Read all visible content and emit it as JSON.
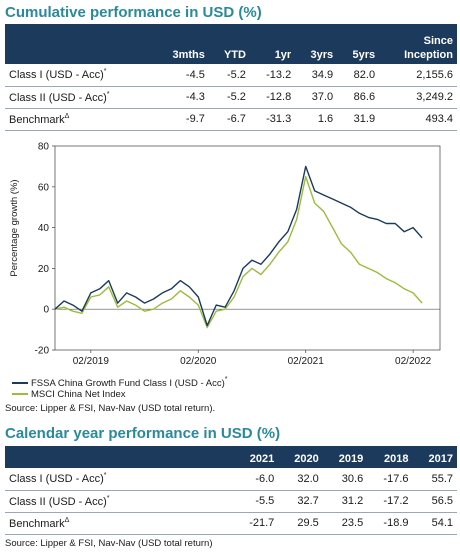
{
  "perf_title": "Cumulative performance in USD (%)",
  "perf_table": {
    "headers": [
      "3mths",
      "YTD",
      "1yr",
      "3yrs",
      "5yrs"
    ],
    "since_line1": "Since",
    "since_line2": "Inception",
    "rows": [
      {
        "label": "Class I (USD - Acc)",
        "mark": "*",
        "values": [
          "-4.5",
          "-5.2",
          "-13.2",
          "34.9",
          "82.0",
          "2,155.6"
        ]
      },
      {
        "label": "Class II (USD - Acc)",
        "mark": "*",
        "values": [
          "-4.3",
          "-5.2",
          "-12.8",
          "37.0",
          "86.6",
          "3,249.2"
        ]
      },
      {
        "label": "Benchmark",
        "mark": "Δ",
        "values": [
          "-9.7",
          "-6.7",
          "-31.3",
          "1.6",
          "31.9",
          "493.4"
        ]
      }
    ]
  },
  "chart_data": {
    "type": "line",
    "ylabel": "Percentage growth (%)",
    "ylim": [
      -20,
      80
    ],
    "yticks": [
      "-20",
      "0",
      "20",
      "40",
      "60",
      "80"
    ],
    "xlim": [
      "2018-10",
      "2022-05"
    ],
    "xticks": [
      {
        "date": "2019-02",
        "label": "02/2019"
      },
      {
        "date": "2020-02",
        "label": "02/2020"
      },
      {
        "date": "2021-02",
        "label": "02/2021"
      },
      {
        "date": "2022-02",
        "label": "02/2022"
      }
    ],
    "grid": false,
    "legend_position": "bottom",
    "series": [
      {
        "name": "FSSA China Growth Fund Class I (USD - Acc)",
        "mark": "*",
        "color": "#1b3a5c",
        "x": [
          "2018-10",
          "2018-11",
          "2018-12",
          "2019-01",
          "2019-02",
          "2019-03",
          "2019-04",
          "2019-05",
          "2019-06",
          "2019-07",
          "2019-08",
          "2019-09",
          "2019-10",
          "2019-11",
          "2019-12",
          "2020-01",
          "2020-02",
          "2020-03",
          "2020-04",
          "2020-05",
          "2020-06",
          "2020-07",
          "2020-08",
          "2020-09",
          "2020-10",
          "2020-11",
          "2020-12",
          "2021-01",
          "2021-02",
          "2021-03",
          "2021-04",
          "2021-05",
          "2021-06",
          "2021-07",
          "2021-08",
          "2021-09",
          "2021-10",
          "2021-11",
          "2021-12",
          "2022-01",
          "2022-02",
          "2022-03"
        ],
        "y": [
          0,
          4,
          2,
          -1,
          8,
          10,
          14,
          3,
          8,
          6,
          3,
          5,
          8,
          10,
          14,
          11,
          6,
          -8,
          2,
          1,
          9,
          20,
          24,
          22,
          27,
          33,
          38,
          49,
          70,
          58,
          56,
          54,
          52,
          50,
          47,
          45,
          44,
          42,
          42,
          38,
          40,
          35
        ]
      },
      {
        "name": "MSCI China Net Index",
        "color": "#9bbc3c",
        "x": [
          "2018-10",
          "2018-11",
          "2018-12",
          "2019-01",
          "2019-02",
          "2019-03",
          "2019-04",
          "2019-05",
          "2019-06",
          "2019-07",
          "2019-08",
          "2019-09",
          "2019-10",
          "2019-11",
          "2019-12",
          "2020-01",
          "2020-02",
          "2020-03",
          "2020-04",
          "2020-05",
          "2020-06",
          "2020-07",
          "2020-08",
          "2020-09",
          "2020-10",
          "2020-11",
          "2020-12",
          "2021-01",
          "2021-02",
          "2021-03",
          "2021-04",
          "2021-05",
          "2021-06",
          "2021-07",
          "2021-08",
          "2021-09",
          "2021-10",
          "2021-11",
          "2021-12",
          "2022-01",
          "2022-02",
          "2022-03"
        ],
        "y": [
          0,
          1,
          -1,
          -2,
          6,
          7,
          11,
          1,
          4,
          2,
          -1,
          0,
          3,
          5,
          9,
          6,
          2,
          -9,
          -1,
          0,
          6,
          16,
          20,
          17,
          22,
          28,
          33,
          44,
          65,
          52,
          48,
          40,
          32,
          28,
          22,
          20,
          18,
          15,
          13,
          10,
          8,
          3
        ]
      }
    ]
  },
  "source_chart": "Source: Lipper & FSI, Nav-Nav (USD total return).",
  "cal_title": "Calendar year performance in USD (%)",
  "cal_table": {
    "headers": [
      "2021",
      "2020",
      "2019",
      "2018",
      "2017"
    ],
    "rows": [
      {
        "label": "Class I (USD - Acc)",
        "mark": "*",
        "values": [
          "-6.0",
          "32.0",
          "30.6",
          "-17.6",
          "55.7"
        ]
      },
      {
        "label": "Class II (USD - Acc)",
        "mark": "*",
        "values": [
          "-5.5",
          "32.7",
          "31.2",
          "-17.2",
          "56.5"
        ]
      },
      {
        "label": "Benchmark",
        "mark": "Δ",
        "values": [
          "-21.7",
          "29.5",
          "23.5",
          "-18.9",
          "54.1"
        ]
      }
    ]
  },
  "source_cal": "Source: Lipper & FSI, Nav-Nav (USD total return)"
}
